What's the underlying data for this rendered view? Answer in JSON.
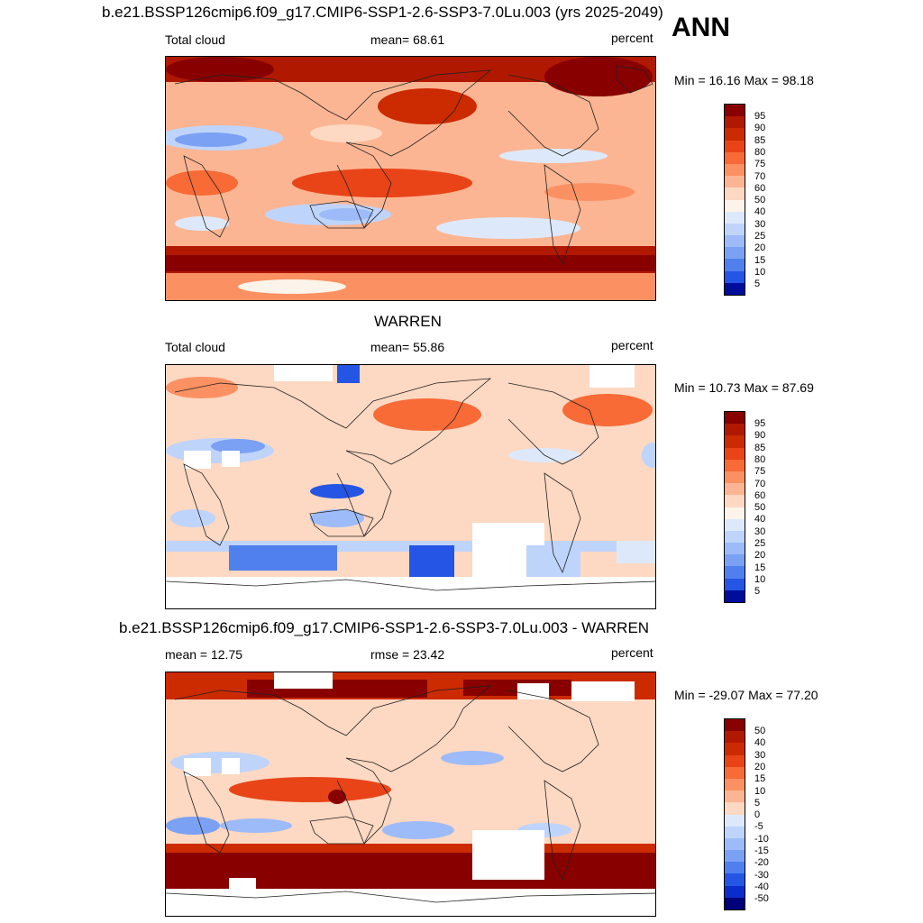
{
  "season": "ANN",
  "panels": [
    {
      "title": "b.e21.BSSP126cmip6.f09_g17.CMIP6-SSP1-2.6-SSP3-7.0Lu.003 (yrs 2025-2049)",
      "left_label": "Total cloud",
      "center_label": "mean=  68.61",
      "units": "percent",
      "minmax": "Min =  16.16 Max =  98.18",
      "colorbar_ticks": [
        "95",
        "90",
        "85",
        "80",
        "75",
        "70",
        "60",
        "50",
        "40",
        "30",
        "25",
        "20",
        "15",
        "10",
        "5"
      ]
    },
    {
      "title": "WARREN",
      "left_label": "Total cloud",
      "center_label": "mean=  55.86",
      "units": "percent",
      "minmax": "Min =  10.73 Max =  87.69",
      "colorbar_ticks": [
        "95",
        "90",
        "85",
        "80",
        "75",
        "70",
        "60",
        "50",
        "40",
        "30",
        "25",
        "20",
        "15",
        "10",
        "5"
      ]
    },
    {
      "title": "b.e21.BSSP126cmip6.f09_g17.CMIP6-SSP1-2.6-SSP3-7.0Lu.003 - WARREN",
      "left_label": "mean =  12.75",
      "center_label": "rmse =  23.42",
      "units": "percent",
      "minmax": "Min = -29.07 Max =  77.20",
      "colorbar_ticks": [
        "50",
        "40",
        "30",
        "20",
        "15",
        "10",
        "5",
        "0",
        "-5",
        "-10",
        "-15",
        "-20",
        "-30",
        "-40",
        "-50"
      ]
    }
  ],
  "colors": {
    "palette": [
      "#880000",
      "#b01800",
      "#cc2a00",
      "#e84418",
      "#f86a36",
      "#fb9162",
      "#fcb592",
      "#fdd8c2",
      "#fcf4ea",
      "#dde9fb",
      "#bfd4fb",
      "#9dbbf8",
      "#7aa1f3",
      "#4f80ee",
      "#2555e4",
      "#0a2cca",
      "#000d9a",
      "#00007a"
    ],
    "land_outline": "#222222"
  }
}
